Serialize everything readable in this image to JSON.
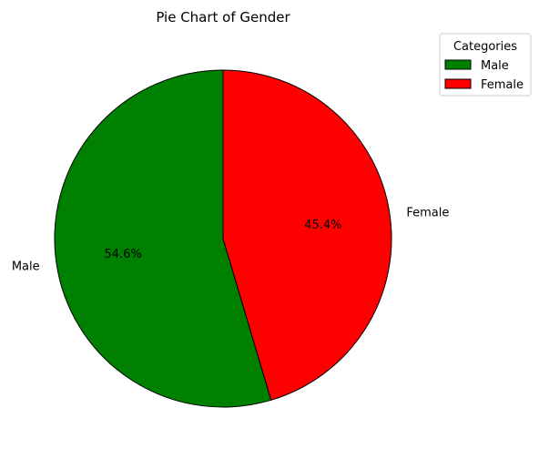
{
  "chart_data": {
    "type": "pie",
    "title": "Pie Chart of Gender",
    "categories": [
      "Male",
      "Female"
    ],
    "values": [
      54.6,
      45.4
    ],
    "percent_labels": [
      "54.6%",
      "45.4%"
    ],
    "colors": [
      "#008000",
      "#ff0000"
    ],
    "start_angle_deg": 90,
    "direction": "counterclockwise",
    "legend": {
      "title": "Categories",
      "position": "top-right",
      "entries": [
        "Male",
        "Female"
      ]
    }
  }
}
